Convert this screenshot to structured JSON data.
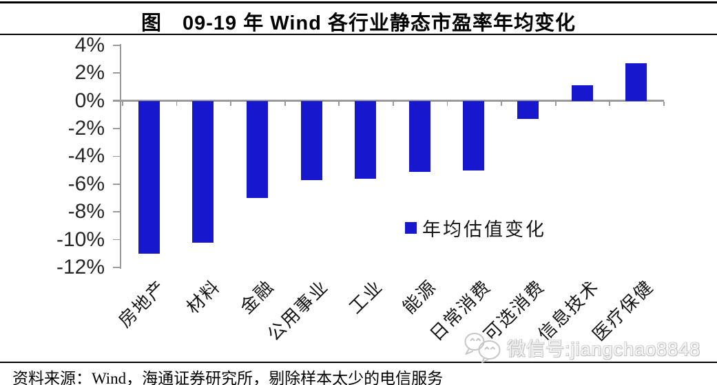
{
  "page": {
    "title": "图　09-19 年 Wind 各行业静态市盈率年均变化",
    "source_note": "资料来源：Wind，海通证券研究所，剔除样本太少的电信服务"
  },
  "legend": {
    "label": "年均估值变化"
  },
  "watermark": {
    "icon": "wechat-icon",
    "text": "微信号:jiangchao8848"
  },
  "colors": {
    "bar": "#1717CD",
    "axis": "#9a9a9a",
    "label_text": "#141414",
    "tick_text": "#262626",
    "rule": "#000000",
    "watermark": "#c6c6c6"
  },
  "chart_data": {
    "type": "bar",
    "title": "图　09-19 年 Wind 各行业静态市盈率年均变化",
    "categories": [
      "房地产",
      "材料",
      "金融",
      "公用事业",
      "工业",
      "能源",
      "日常消费",
      "可选消费",
      "信息技术",
      "医疗保健"
    ],
    "series": [
      {
        "name": "年均估值变化",
        "values": [
          -11.0,
          -10.2,
          -7.0,
          -5.7,
          -5.6,
          -5.1,
          -5.0,
          -1.3,
          1.1,
          2.7
        ]
      }
    ],
    "unit": "%",
    "xlabel": "",
    "ylabel": "",
    "ylim": [
      -12,
      4
    ],
    "ytick_step": 2,
    "ytick_labels": [
      "4%",
      "2%",
      "0%",
      "-2%",
      "-4%",
      "-6%",
      "-8%",
      "-10%",
      "-12%"
    ],
    "grid": false,
    "legend_position": "inside-right",
    "source": "资料来源：Wind，海通证券研究所，剔除样本太少的电信服务"
  }
}
